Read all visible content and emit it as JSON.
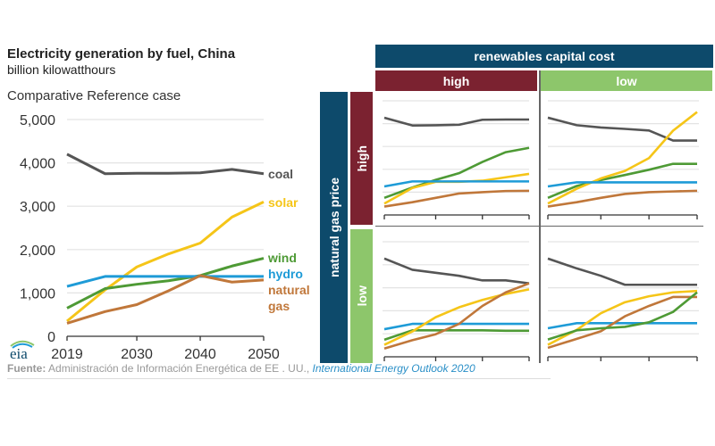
{
  "title": "Electricity generation by fuel, China",
  "subtitle": "billion kilowatthours",
  "footer": {
    "source_label": "Fuente:",
    "source_text": " Administración de Información Energética de EE . UU., ",
    "publication": "International Energy Outlook 2020"
  },
  "logo_text": "eia",
  "matrix": {
    "column_header": "renewables capital cost",
    "column_high": "high",
    "column_low": "low",
    "row_header": "natural gas price",
    "row_high": "high",
    "row_low": "low"
  },
  "colors": {
    "coal": "#555555",
    "solar": "#f5c518",
    "wind": "#4e9a35",
    "hydro": "#1e9bd7",
    "natural_gas": "#c0773a",
    "header": "#0d4a6b",
    "high": "#7b2230",
    "low": "#8dc66b"
  },
  "chart_data": [
    {
      "type": "line",
      "title": "Comparative Reference case",
      "x": [
        2019,
        2025,
        2030,
        2035,
        2040,
        2045,
        2050
      ],
      "xticks": [
        "2019",
        "2030",
        "2040",
        "2050"
      ],
      "yticks": [
        "0",
        "1,000",
        "2,000",
        "3,000",
        "4,000",
        "5,000"
      ],
      "ylim": [
        0,
        5000
      ],
      "grid": true,
      "series": [
        {
          "name": "coal",
          "key": "coal",
          "values": [
            4200,
            3750,
            3760,
            3760,
            3770,
            3850,
            3750
          ]
        },
        {
          "name": "solar",
          "key": "solar",
          "values": [
            350,
            1070,
            1600,
            1900,
            2150,
            2750,
            3100
          ]
        },
        {
          "name": "wind",
          "key": "wind",
          "values": [
            650,
            1100,
            1200,
            1280,
            1400,
            1620,
            1800
          ]
        },
        {
          "name": "hydro",
          "key": "hydro",
          "values": [
            1150,
            1380,
            1380,
            1380,
            1380,
            1380,
            1380
          ]
        },
        {
          "name": "natural gas",
          "key": "natural_gas",
          "label_lines": [
            "natural",
            "gas"
          ],
          "values": [
            300,
            570,
            730,
            1050,
            1400,
            1250,
            1300
          ]
        }
      ]
    },
    {
      "type": "line",
      "natural_gas_price": "high",
      "renewables_capital_cost": "high",
      "x": [
        2019,
        2025,
        2030,
        2035,
        2040,
        2045,
        2050
      ],
      "ylim": [
        0,
        5000
      ],
      "grid": true,
      "series": [
        {
          "key": "coal",
          "values": [
            4260,
            3920,
            3930,
            3950,
            4170,
            4180,
            4180
          ]
        },
        {
          "key": "wind",
          "values": [
            750,
            1200,
            1540,
            1830,
            2320,
            2750,
            2940
          ]
        },
        {
          "key": "solar",
          "values": [
            500,
            1180,
            1450,
            1450,
            1500,
            1650,
            1800
          ]
        },
        {
          "key": "hydro",
          "values": [
            1250,
            1470,
            1470,
            1470,
            1470,
            1470,
            1470
          ]
        },
        {
          "key": "natural_gas",
          "values": [
            370,
            560,
            750,
            940,
            1000,
            1050,
            1060
          ]
        }
      ]
    },
    {
      "type": "line",
      "natural_gas_price": "high",
      "renewables_capital_cost": "low",
      "x": [
        2019,
        2025,
        2030,
        2035,
        2040,
        2045,
        2050
      ],
      "ylim": [
        0,
        5000
      ],
      "grid": true,
      "series": [
        {
          "key": "coal",
          "values": [
            4260,
            3930,
            3830,
            3770,
            3700,
            3260,
            3260
          ]
        },
        {
          "key": "wind",
          "values": [
            750,
            1270,
            1530,
            1750,
            1980,
            2240,
            2240
          ]
        },
        {
          "key": "solar",
          "values": [
            500,
            1150,
            1600,
            1930,
            2490,
            3690,
            4510
          ]
        },
        {
          "key": "hydro",
          "values": [
            1250,
            1430,
            1430,
            1430,
            1430,
            1430,
            1430
          ]
        },
        {
          "key": "natural_gas",
          "values": [
            370,
            560,
            750,
            920,
            1000,
            1030,
            1060
          ]
        }
      ]
    },
    {
      "type": "line",
      "natural_gas_price": "low",
      "renewables_capital_cost": "high",
      "x": [
        2019,
        2025,
        2030,
        2035,
        2040,
        2045,
        2050
      ],
      "ylim": [
        0,
        5000
      ],
      "grid": true,
      "series": [
        {
          "key": "coal",
          "values": [
            4270,
            3780,
            3650,
            3520,
            3320,
            3320,
            3190
          ]
        },
        {
          "key": "wind",
          "values": [
            740,
            1150,
            1150,
            1150,
            1150,
            1130,
            1130
          ]
        },
        {
          "key": "hydro",
          "values": [
            1200,
            1430,
            1430,
            1430,
            1430,
            1430,
            1430
          ]
        },
        {
          "key": "solar",
          "values": [
            520,
            1100,
            1720,
            2150,
            2470,
            2730,
            2930
          ]
        },
        {
          "key": "natural_gas",
          "values": [
            360,
            720,
            980,
            1430,
            2210,
            2800,
            3190
          ]
        }
      ]
    },
    {
      "type": "line",
      "natural_gas_price": "low",
      "renewables_capital_cost": "low",
      "x": [
        2019,
        2025,
        2030,
        2035,
        2040,
        2045,
        2050
      ],
      "ylim": [
        0,
        5000
      ],
      "grid": true,
      "series": [
        {
          "key": "coal",
          "values": [
            4270,
            3840,
            3520,
            3130,
            3130,
            3130,
            3130
          ]
        },
        {
          "key": "hydro",
          "values": [
            1240,
            1460,
            1460,
            1460,
            1460,
            1460,
            1460
          ]
        },
        {
          "key": "solar",
          "values": [
            520,
            1170,
            1890,
            2370,
            2630,
            2800,
            2860
          ]
        },
        {
          "key": "natural_gas",
          "values": [
            390,
            780,
            1110,
            1760,
            2210,
            2600,
            2600
          ]
        },
        {
          "key": "wind",
          "values": [
            750,
            1150,
            1240,
            1300,
            1500,
            1950,
            2800
          ]
        }
      ]
    }
  ]
}
